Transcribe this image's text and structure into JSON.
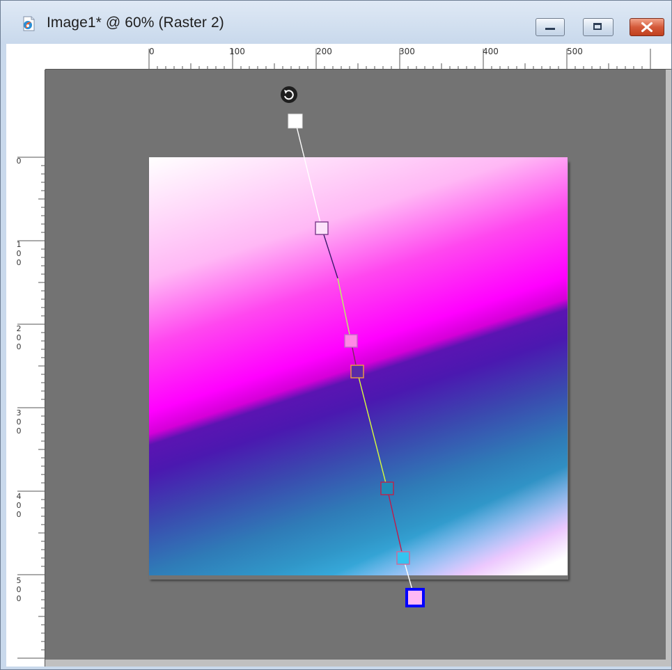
{
  "window": {
    "title": "Image1* @  60% (Raster 2)",
    "app_icon": "paintshop-pro-icon",
    "buttons": {
      "minimize": "minimize-icon",
      "maximize": "maximize-icon",
      "close": "close-icon"
    }
  },
  "rulers": {
    "horizontal_labels": [
      "0",
      "100",
      "200",
      "300",
      "400",
      "500"
    ],
    "vertical_labels": [
      [
        "0"
      ],
      [
        "1",
        "0",
        "0"
      ],
      [
        "2",
        "0",
        "0"
      ],
      [
        "3",
        "0",
        "0"
      ],
      [
        "4",
        "0",
        "0"
      ],
      [
        "5",
        "0",
        "0"
      ]
    ]
  },
  "document": {
    "zoom": "60%",
    "layer": "Raster 2",
    "gradient_colors": [
      "#ffffff",
      "#ff00ff",
      "#4b18b0",
      "#3096c8",
      "#4cc8ff"
    ]
  },
  "gradient_tool": {
    "rotate_handle_icon": "rotate-icon",
    "stop_colors": [
      "#ffffff",
      "#ffffff",
      "#ff88e6",
      "#f0a040",
      "#208ab8",
      "#33c4f0",
      "#ffb8f5"
    ]
  },
  "colors": {
    "workspace": "#737373",
    "ruler": "#ffffff",
    "selected_handle_border": "#0000ff"
  }
}
